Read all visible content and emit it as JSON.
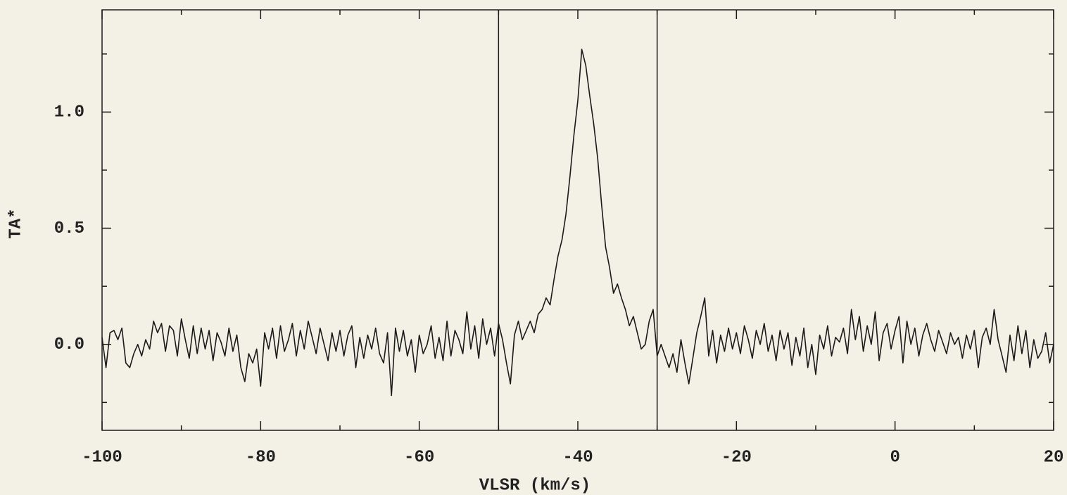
{
  "chart_data": {
    "type": "line",
    "x_label": "VLSR (km/s)",
    "y_label": "TA*",
    "color": "#1a1a1a",
    "xlim": [
      -100,
      20
    ],
    "ylim": [
      -0.37,
      1.44
    ],
    "xticks": [
      -100,
      -80,
      -60,
      -40,
      -20,
      0,
      20
    ],
    "xminor_ticks": [
      -90,
      -70,
      -50,
      -30,
      -10,
      10
    ],
    "yticks": [
      {
        "value": 0,
        "label": "0.0"
      },
      {
        "value": 0.5,
        "label": "0.5"
      },
      {
        "value": 1,
        "label": "1.0"
      }
    ],
    "yminor_ticks": [
      -0.25,
      0.25,
      0.75,
      1.25
    ],
    "vlines": [
      -50,
      -30
    ],
    "x": [
      -100,
      -99.5,
      -99,
      -98.5,
      -98,
      -97.5,
      -97,
      -96.5,
      -96,
      -95.5,
      -95,
      -94.5,
      -94,
      -93.5,
      -93,
      -92.5,
      -92,
      -91.5,
      -91,
      -90.5,
      -90,
      -89.5,
      -89,
      -88.5,
      -88,
      -87.5,
      -87,
      -86.5,
      -86,
      -85.5,
      -85,
      -84.5,
      -84,
      -83.5,
      -83,
      -82.5,
      -82,
      -81.5,
      -81,
      -80.5,
      -80,
      -79.5,
      -79,
      -78.5,
      -78,
      -77.5,
      -77,
      -76.5,
      -76,
      -75.5,
      -75,
      -74.5,
      -74,
      -73.5,
      -73,
      -72.5,
      -72,
      -71.5,
      -71,
      -70.5,
      -70,
      -69.5,
      -69,
      -68.5,
      -68,
      -67.5,
      -67,
      -66.5,
      -66,
      -65.5,
      -65,
      -64.5,
      -64,
      -63.5,
      -63,
      -62.5,
      -62,
      -61.5,
      -61,
      -60.5,
      -60,
      -59.5,
      -59,
      -58.5,
      -58,
      -57.5,
      -57,
      -56.5,
      -56,
      -55.5,
      -55,
      -54.5,
      -54,
      -53.5,
      -53,
      -52.5,
      -52,
      -51.5,
      -51,
      -50.5,
      -50,
      -49.5,
      -49,
      -48.5,
      -48,
      -47.5,
      -47,
      -46.5,
      -46,
      -45.5,
      -45,
      -44.5,
      -44,
      -43.5,
      -43,
      -42.5,
      -42,
      -41.5,
      -41,
      -40.5,
      -40,
      -39.5,
      -39,
      -38.5,
      -38,
      -37.5,
      -37,
      -36.5,
      -36,
      -35.5,
      -35,
      -34.5,
      -34,
      -33.5,
      -33,
      -32.5,
      -32,
      -31.5,
      -31,
      -30.5,
      -30,
      -29.5,
      -29,
      -28.5,
      -28,
      -27.5,
      -27,
      -26.5,
      -26,
      -25.5,
      -25,
      -24.5,
      -24,
      -23.5,
      -23,
      -22.5,
      -22,
      -21.5,
      -21,
      -20.5,
      -20,
      -19.5,
      -19,
      -18.5,
      -18,
      -17.5,
      -17,
      -16.5,
      -16,
      -15.5,
      -15,
      -14.5,
      -14,
      -13.5,
      -13,
      -12.5,
      -12,
      -11.5,
      -11,
      -10.5,
      -10,
      -9.5,
      -9,
      -8.5,
      -8,
      -7.5,
      -7,
      -6.5,
      -6,
      -5.5,
      -5,
      -4.5,
      -4,
      -3.5,
      -3,
      -2.5,
      -2,
      -1.5,
      -1,
      -0.5,
      0,
      0.5,
      1,
      1.5,
      2,
      2.5,
      3,
      3.5,
      4,
      4.5,
      5,
      5.5,
      6,
      6.5,
      7,
      7.5,
      8,
      8.5,
      9,
      9.5,
      10,
      10.5,
      11,
      11.5,
      12,
      12.5,
      13,
      13.5,
      14,
      14.5,
      15,
      15.5,
      16,
      16.5,
      17,
      17.5,
      18,
      18.5,
      19,
      19.5,
      20
    ],
    "values": [
      0.03,
      -0.1,
      0.05,
      0.06,
      0.02,
      0.07,
      -0.08,
      -0.1,
      -0.04,
      0.0,
      -0.05,
      0.02,
      -0.02,
      0.1,
      0.05,
      0.09,
      -0.03,
      0.08,
      0.06,
      -0.05,
      0.11,
      0.02,
      -0.06,
      0.08,
      -0.04,
      0.07,
      -0.02,
      0.06,
      -0.07,
      0.05,
      0.01,
      -0.05,
      0.07,
      -0.03,
      0.04,
      -0.1,
      -0.16,
      -0.04,
      -0.08,
      -0.02,
      -0.18,
      0.05,
      -0.02,
      0.07,
      -0.06,
      0.08,
      -0.03,
      0.02,
      0.09,
      -0.05,
      0.06,
      -0.02,
      0.1,
      0.03,
      -0.04,
      0.07,
      0.0,
      -0.07,
      0.05,
      -0.03,
      0.06,
      -0.05,
      0.04,
      0.08,
      -0.1,
      0.03,
      -0.06,
      0.04,
      -0.02,
      0.07,
      -0.04,
      -0.08,
      0.05,
      -0.22,
      0.07,
      -0.03,
      0.06,
      -0.05,
      0.02,
      -0.12,
      0.04,
      -0.04,
      0.0,
      0.08,
      -0.06,
      0.03,
      -0.07,
      0.1,
      -0.05,
      0.06,
      0.02,
      -0.04,
      0.14,
      -0.02,
      0.08,
      -0.06,
      0.11,
      0.0,
      0.07,
      -0.05,
      0.09,
      0.02,
      -0.08,
      -0.17,
      0.04,
      0.1,
      0.02,
      0.06,
      0.1,
      0.05,
      0.13,
      0.15,
      0.2,
      0.17,
      0.28,
      0.38,
      0.45,
      0.56,
      0.72,
      0.9,
      1.05,
      1.27,
      1.2,
      1.07,
      0.95,
      0.8,
      0.6,
      0.42,
      0.33,
      0.22,
      0.26,
      0.2,
      0.15,
      0.08,
      0.12,
      0.05,
      -0.02,
      0.0,
      0.1,
      0.15,
      -0.05,
      0.0,
      -0.05,
      -0.1,
      -0.04,
      -0.12,
      0.02,
      -0.08,
      -0.17,
      -0.06,
      0.05,
      0.12,
      0.2,
      -0.05,
      0.06,
      -0.08,
      0.04,
      -0.03,
      0.07,
      -0.02,
      0.05,
      -0.04,
      0.08,
      0.02,
      -0.06,
      0.06,
      0.0,
      0.09,
      -0.03,
      0.04,
      -0.07,
      0.06,
      -0.02,
      0.05,
      -0.09,
      0.03,
      -0.05,
      0.07,
      -0.1,
      0.0,
      -0.13,
      0.04,
      -0.02,
      0.08,
      -0.05,
      0.03,
      0.01,
      0.07,
      -0.04,
      0.15,
      0.02,
      0.12,
      -0.03,
      0.08,
      0.0,
      0.14,
      -0.07,
      0.05,
      0.09,
      -0.02,
      0.06,
      0.12,
      -0.08,
      0.1,
      0.0,
      0.07,
      -0.05,
      0.04,
      0.09,
      0.02,
      -0.03,
      0.06,
      0.01,
      -0.04,
      0.05,
      0.0,
      0.03,
      -0.06,
      0.04,
      -0.02,
      0.06,
      -0.1,
      0.03,
      0.07,
      0.0,
      0.15,
      0.02,
      -0.05,
      -0.12,
      0.04,
      -0.07,
      0.08,
      -0.04,
      0.06,
      -0.1,
      0.02,
      -0.06,
      -0.03,
      0.05,
      -0.08,
      0.0
    ]
  }
}
